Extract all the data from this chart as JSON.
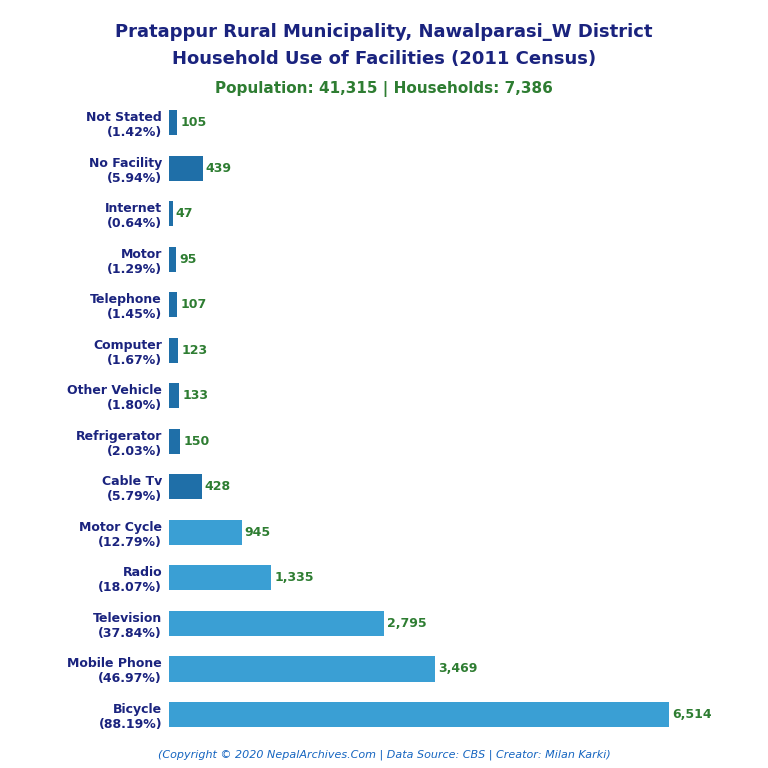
{
  "title_line1": "Pratappur Rural Municipality, Nawalparasi_W District",
  "title_line2": "Household Use of Facilities (2011 Census)",
  "subtitle": "Population: 41,315 | Households: 7,386",
  "copyright": "(Copyright © 2020 NepalArchives.Com | Data Source: CBS | Creator: Milan Karki)",
  "categories": [
    "Not Stated\n(1.42%)",
    "No Facility\n(5.94%)",
    "Internet\n(0.64%)",
    "Motor\n(1.29%)",
    "Telephone\n(1.45%)",
    "Computer\n(1.67%)",
    "Other Vehicle\n(1.80%)",
    "Refrigerator\n(2.03%)",
    "Cable Tv\n(5.79%)",
    "Motor Cycle\n(12.79%)",
    "Radio\n(18.07%)",
    "Television\n(37.84%)",
    "Mobile Phone\n(46.97%)",
    "Bicycle\n(88.19%)"
  ],
  "values": [
    105,
    439,
    47,
    95,
    107,
    123,
    133,
    150,
    428,
    945,
    1335,
    2795,
    3469,
    6514
  ],
  "bar_color_small": "#1f6fa8",
  "bar_color_large": "#3a9fd4",
  "title_color": "#1a237e",
  "subtitle_color": "#2e7d32",
  "value_color": "#2e7d32",
  "ylabel_color": "#1a237e",
  "copyright_color": "#1565c0",
  "background_color": "#ffffff",
  "xlim": [
    0,
    7000
  ]
}
